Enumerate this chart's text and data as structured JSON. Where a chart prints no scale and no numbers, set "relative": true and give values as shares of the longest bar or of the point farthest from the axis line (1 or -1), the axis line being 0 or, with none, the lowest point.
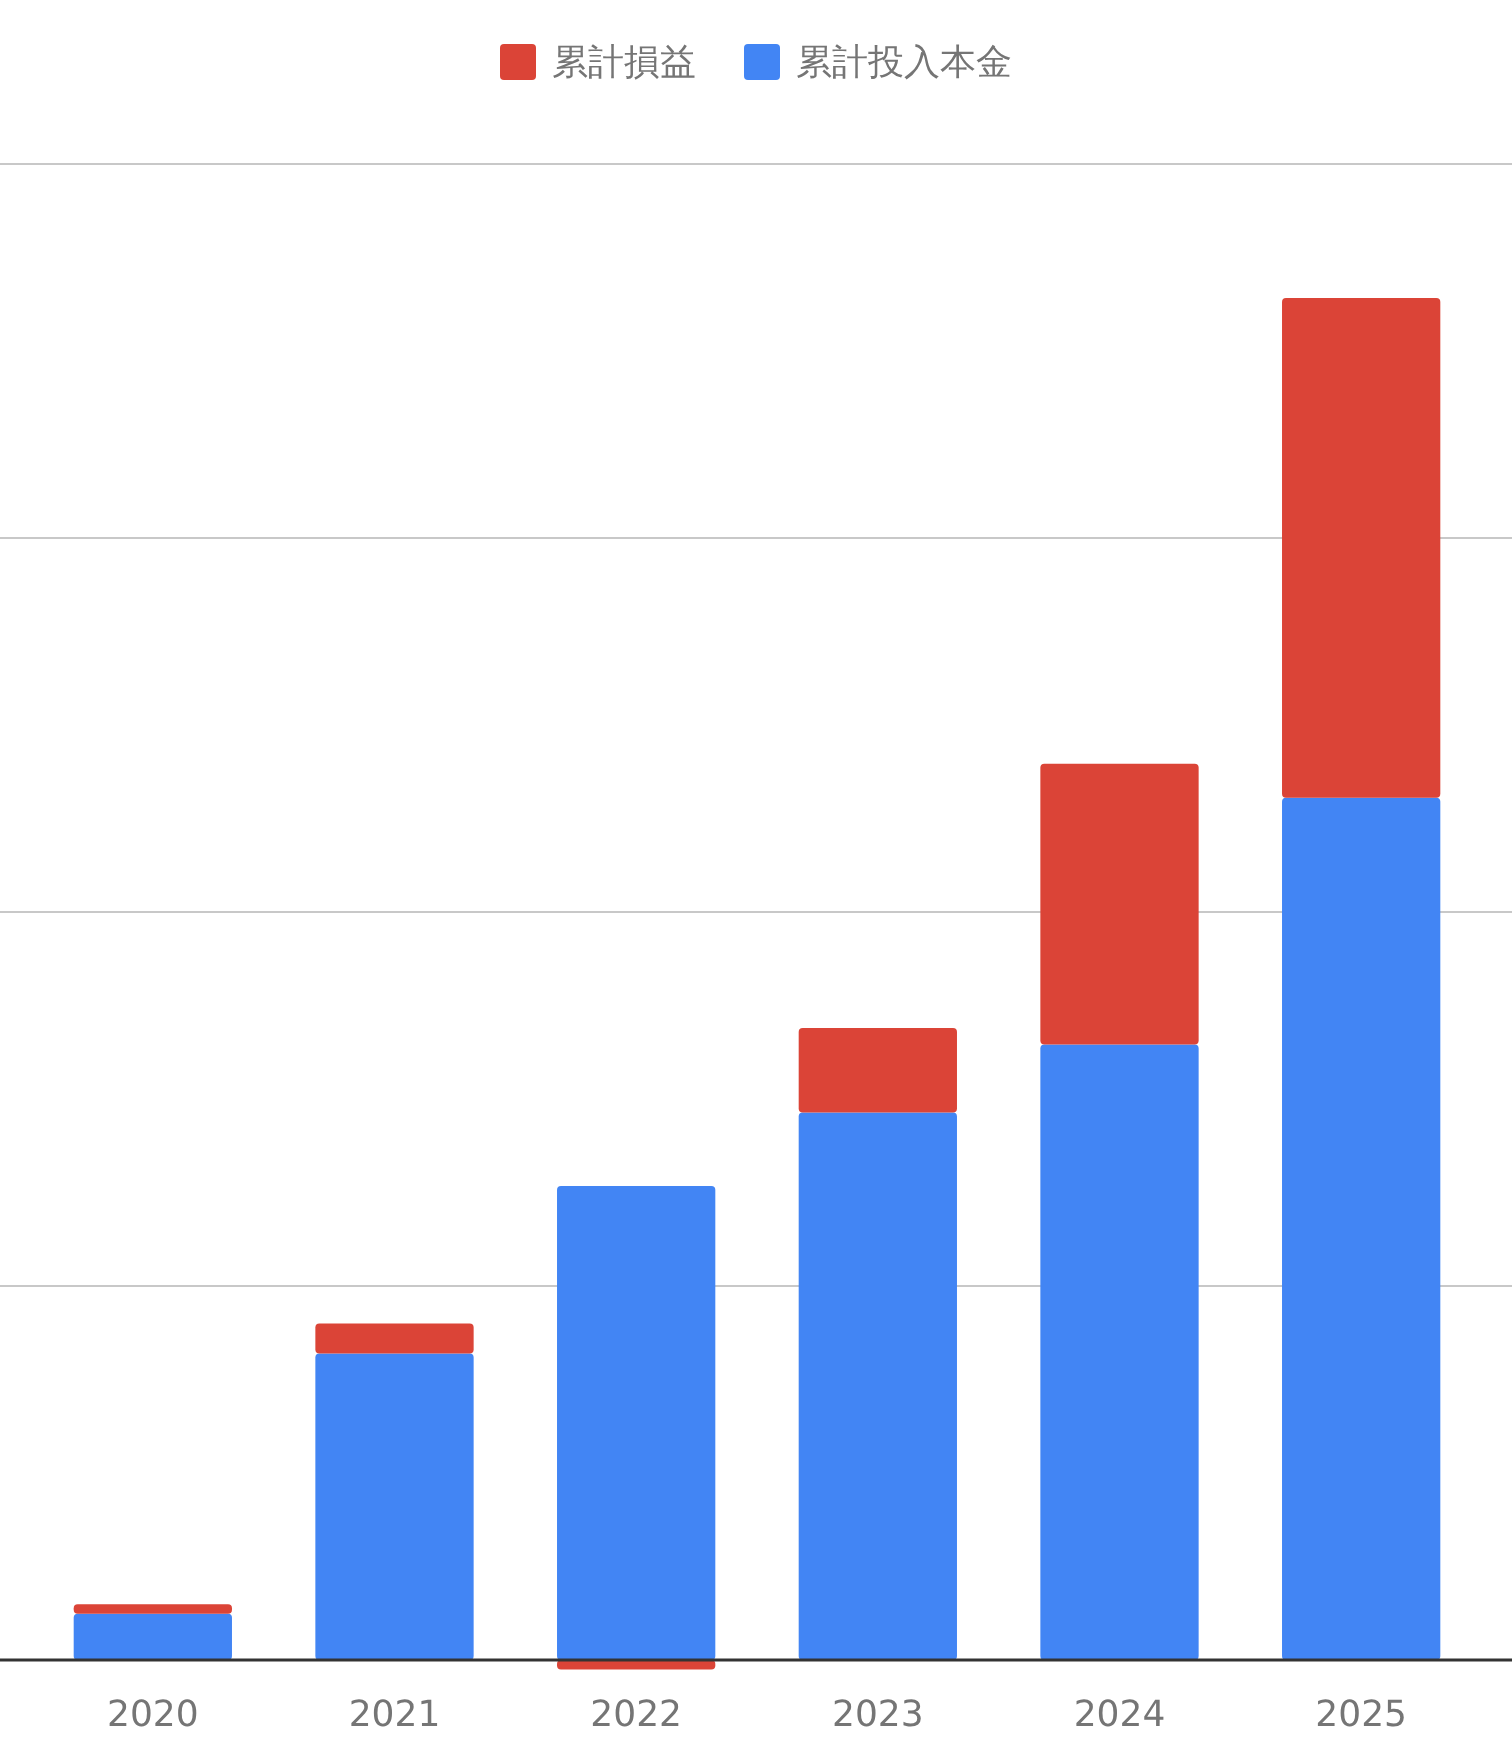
{
  "chart_data": {
    "type": "bar",
    "stacked": true,
    "relative": true,
    "grid": "y",
    "legend": "top",
    "categories": [
      "2020",
      "2021",
      "2022",
      "2023",
      "2024",
      "2025"
    ],
    "series": [
      {
        "name": "累計投入本金",
        "color": "#4285f4",
        "values": [
          0.034,
          0.225,
          0.348,
          0.402,
          0.452,
          0.633
        ]
      },
      {
        "name": "累計損益",
        "color": "#db4437",
        "values": [
          0.007,
          0.022,
          -0.007,
          0.062,
          0.206,
          0.367
        ]
      }
    ]
  }
}
